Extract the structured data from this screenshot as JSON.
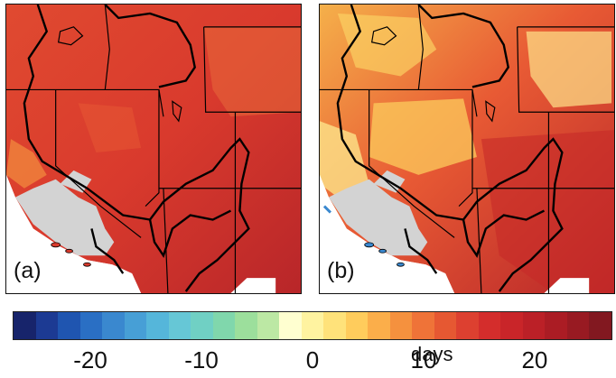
{
  "panels": [
    {
      "label": "(a)"
    },
    {
      "label": "(b)"
    }
  ],
  "colorbar": {
    "unit": "days",
    "range": [
      -27,
      27
    ],
    "ticks": [
      {
        "value": -20,
        "label": "-20"
      },
      {
        "value": -10,
        "label": "-10"
      },
      {
        "value": 0,
        "label": "0"
      },
      {
        "value": 10,
        "label": "10"
      },
      {
        "value": 20,
        "label": "20"
      }
    ],
    "colors": [
      "#17246b",
      "#1c3a93",
      "#1f55b0",
      "#2a6fc4",
      "#3a88cf",
      "#479fd6",
      "#55b6da",
      "#66c7d6",
      "#70d0c4",
      "#80d7ac",
      "#9cdf9c",
      "#bce8a4",
      "#ffffd0",
      "#fff3a0",
      "#ffe27a",
      "#ffcc5c",
      "#fbae4a",
      "#f5913e",
      "#ef7338",
      "#e65832",
      "#dd4030",
      "#d42d2c",
      "#c92529",
      "#bb2027",
      "#ab1c24",
      "#981a22",
      "#821820"
    ]
  },
  "colors": {
    "background_red": "#d83a2c",
    "ocean": "#ffffff",
    "no_data_gray": "#d3d3d3",
    "boundary": "#000000"
  }
}
